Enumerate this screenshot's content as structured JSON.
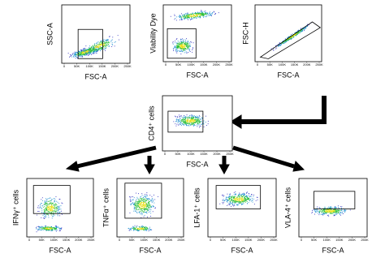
{
  "panels": [
    {
      "y_label": "SSC-A",
      "x_label": "FSC-A",
      "x_ticks": [
        "0",
        "50K",
        "100K",
        "150K",
        "200K",
        "250K"
      ]
    },
    {
      "y_label": "Viability Dye",
      "x_label": "FSC-A",
      "x_ticks": [
        "0",
        "50K",
        "100K",
        "150K",
        "200K",
        "250K"
      ]
    },
    {
      "y_label": "FSC-H",
      "x_label": "FSC-A",
      "x_ticks": [
        "0",
        "50K",
        "100K",
        "150K",
        "200K",
        "250K"
      ]
    },
    {
      "y_label": "CD4⁺ cells",
      "x_label": "FSC-A",
      "x_ticks": [
        "0",
        "50K",
        "100K",
        "150K",
        "200K",
        "250K"
      ]
    },
    {
      "y_label": "IFNγ⁺ cells",
      "x_label": "FSC-A",
      "x_ticks": [
        "0",
        "50K",
        "100K",
        "150K",
        "200K",
        "250K"
      ]
    },
    {
      "y_label": "TNFα⁺ cells",
      "x_label": "FSC-A",
      "x_ticks": [
        "0",
        "50K",
        "100K",
        "150K",
        "200K",
        "250K"
      ]
    },
    {
      "y_label": "LFA-1⁺ cells",
      "x_label": "FSC-A",
      "x_ticks": [
        "0",
        "50K",
        "100K",
        "150K",
        "200K",
        "250K"
      ]
    },
    {
      "y_label": "VLA-4⁺ cells",
      "x_label": "FSC-A",
      "x_ticks": [
        "0",
        "50K",
        "100K",
        "150K",
        "200K",
        "250K"
      ]
    }
  ]
}
